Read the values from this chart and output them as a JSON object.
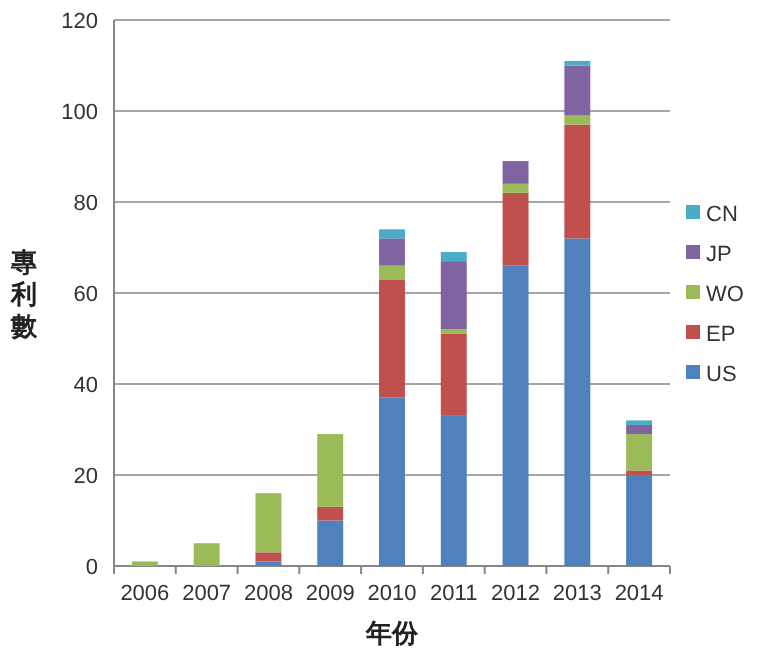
{
  "chart_data": {
    "type": "bar",
    "stacked": true,
    "xlabel": "年份",
    "ylabel": "專利數",
    "categories": [
      "2006",
      "2007",
      "2008",
      "2009",
      "2010",
      "2011",
      "2012",
      "2013",
      "2014"
    ],
    "series": [
      {
        "name": "US",
        "color": "#4f81bd",
        "values": [
          0,
          0,
          1,
          10,
          37,
          33,
          66,
          72,
          20
        ]
      },
      {
        "name": "EP",
        "color": "#c0504d",
        "values": [
          0,
          0,
          2,
          3,
          26,
          18,
          16,
          25,
          1
        ]
      },
      {
        "name": "WO",
        "color": "#9bbb59",
        "values": [
          1,
          5,
          13,
          16,
          3,
          1,
          2,
          2,
          8
        ]
      },
      {
        "name": "JP",
        "color": "#8064a2",
        "values": [
          0,
          0,
          0,
          0,
          6,
          15,
          5,
          11,
          2
        ]
      },
      {
        "name": "CN",
        "color": "#4bacc6",
        "values": [
          0,
          0,
          0,
          0,
          2,
          2,
          0,
          1,
          1
        ]
      }
    ],
    "ylim": [
      0,
      120
    ],
    "yticks": [
      0,
      20,
      40,
      60,
      80,
      100,
      120
    ],
    "grid": "y",
    "legend": "right"
  }
}
